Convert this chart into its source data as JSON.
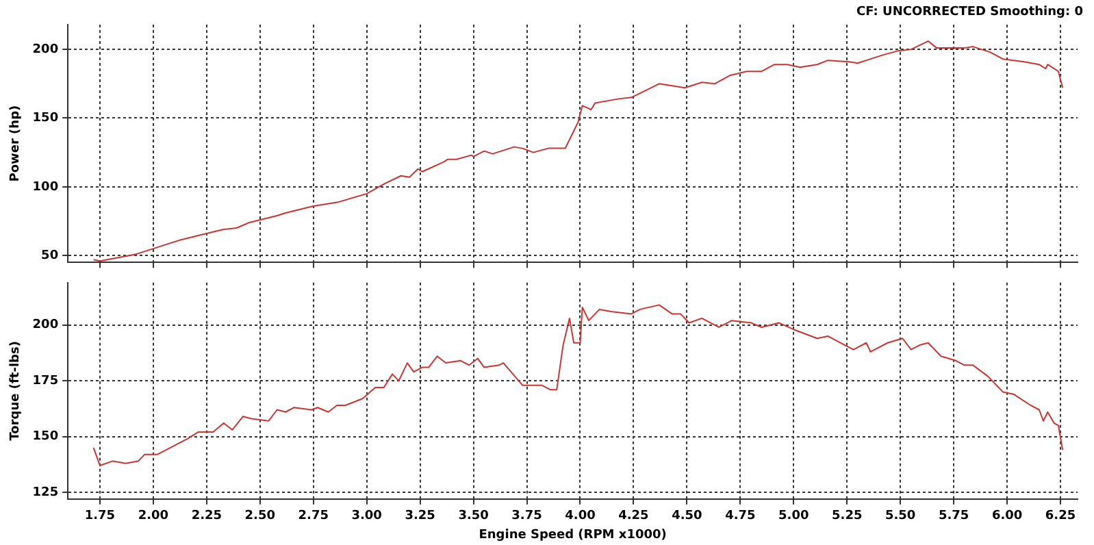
{
  "chart_data": [
    {
      "type": "line",
      "ylabel": "Power (hp)",
      "annotations": [
        "CF: UNCORRECTED  Smoothing: 0"
      ],
      "tick_labels": "y",
      "grid": true,
      "marker": "none",
      "line_style": "solid",
      "xlim": [
        1.6,
        6.33
      ],
      "ylim": [
        45,
        218
      ],
      "xticks": [
        {
          "value": 1.75,
          "label": null
        },
        {
          "value": 2,
          "label": null
        },
        {
          "value": 2.25,
          "label": null
        },
        {
          "value": 2.5,
          "label": null
        },
        {
          "value": 2.75,
          "label": null
        },
        {
          "value": 3,
          "label": null
        },
        {
          "value": 3.25,
          "label": null
        },
        {
          "value": 3.5,
          "label": null
        },
        {
          "value": 3.75,
          "label": null
        },
        {
          "value": 4,
          "label": null
        },
        {
          "value": 4.25,
          "label": null
        },
        {
          "value": 4.5,
          "label": null
        },
        {
          "value": 4.75,
          "label": null
        },
        {
          "value": 5,
          "label": null
        },
        {
          "value": 5.25,
          "label": null
        },
        {
          "value": 5.5,
          "label": null
        },
        {
          "value": 5.75,
          "label": null
        },
        {
          "value": 6,
          "label": null
        },
        {
          "value": 6.25,
          "label": null
        }
      ],
      "yticks": [
        50,
        100,
        150,
        200
      ],
      "series": [
        {
          "color": "#cc3333",
          "x": [
            1.72,
            1.75,
            1.92,
            2.0,
            2.12,
            2.25,
            2.33,
            2.39,
            2.45,
            2.58,
            2.62,
            2.75,
            2.87,
            3.0,
            3.08,
            3.16,
            3.2,
            3.24,
            3.26,
            3.36,
            3.38,
            3.42,
            3.49,
            3.5,
            3.55,
            3.59,
            3.69,
            3.73,
            3.78,
            3.85,
            3.93,
            3.99,
            4.01,
            4.04,
            4.05,
            4.07,
            4.18,
            4.24,
            4.37,
            4.45,
            4.49,
            4.57,
            4.63,
            4.7,
            4.78,
            4.85,
            4.91,
            4.97,
            5.03,
            5.11,
            5.16,
            5.26,
            5.3,
            5.36,
            5.42,
            5.49,
            5.55,
            5.59,
            5.63,
            5.67,
            5.8,
            5.84,
            5.92,
            5.98,
            6.08,
            6.15,
            6.18,
            6.19,
            6.24,
            6.26
          ],
          "values": [
            47,
            46,
            51,
            55,
            61,
            66,
            69,
            70,
            74,
            79,
            81,
            86,
            89,
            95,
            102,
            108,
            107,
            113,
            111,
            118,
            120,
            120,
            123,
            122,
            126,
            124,
            129,
            128,
            125,
            128,
            128,
            147,
            159,
            157,
            156,
            161,
            164,
            165,
            175,
            173,
            172,
            176,
            175,
            181,
            184,
            184,
            189,
            189,
            187,
            189,
            192,
            191,
            190,
            193,
            196,
            199,
            200,
            203,
            206,
            201,
            201,
            202,
            198,
            193,
            191,
            189,
            186,
            189,
            184,
            172
          ]
        }
      ]
    },
    {
      "type": "line",
      "ylabel": "Torque (ft-lbs)",
      "xlabel": "Engine Speed (RPM x1000)",
      "grid": true,
      "marker": "none",
      "line_style": "solid",
      "xlim": [
        1.6,
        6.33
      ],
      "ylim": [
        122,
        219
      ],
      "xticks": [
        {
          "value": 1.75,
          "label": "1.75"
        },
        {
          "value": 2,
          "label": "2.00"
        },
        {
          "value": 2.25,
          "label": "2.25"
        },
        {
          "value": 2.5,
          "label": "2.50"
        },
        {
          "value": 2.75,
          "label": "2.75"
        },
        {
          "value": 3,
          "label": "3.00"
        },
        {
          "value": 3.25,
          "label": "3.25"
        },
        {
          "value": 3.5,
          "label": "3.50"
        },
        {
          "value": 3.75,
          "label": "3.75"
        },
        {
          "value": 4,
          "label": "4.00"
        },
        {
          "value": 4.25,
          "label": "4.25"
        },
        {
          "value": 4.5,
          "label": "4.50"
        },
        {
          "value": 4.75,
          "label": "4.75"
        },
        {
          "value": 5,
          "label": "5.00"
        },
        {
          "value": 5.25,
          "label": "5.25"
        },
        {
          "value": 5.5,
          "label": "5.50"
        },
        {
          "value": 5.75,
          "label": "5.75"
        },
        {
          "value": 6,
          "label": "6.00"
        },
        {
          "value": 6.25,
          "label": "6.25"
        }
      ],
      "yticks": [
        125,
        150,
        175,
        200
      ],
      "series": [
        {
          "color": "#cc3333",
          "x": [
            1.72,
            1.75,
            1.81,
            1.87,
            1.93,
            1.96,
            2.02,
            2.08,
            2.16,
            2.21,
            2.28,
            2.33,
            2.37,
            2.42,
            2.46,
            2.54,
            2.58,
            2.62,
            2.66,
            2.74,
            2.77,
            2.82,
            2.86,
            2.9,
            2.98,
            3.04,
            3.08,
            3.12,
            3.15,
            3.19,
            3.22,
            3.26,
            3.29,
            3.33,
            3.37,
            3.44,
            3.48,
            3.52,
            3.55,
            3.62,
            3.64,
            3.73,
            3.78,
            3.82,
            3.86,
            3.89,
            3.92,
            3.95,
            3.97,
            4.0,
            4.01,
            4.04,
            4.09,
            4.15,
            4.24,
            4.28,
            4.37,
            4.43,
            4.47,
            4.51,
            4.57,
            4.65,
            4.71,
            4.8,
            4.85,
            4.93,
            5.0,
            5.11,
            5.16,
            5.24,
            5.28,
            5.34,
            5.36,
            5.44,
            5.51,
            5.55,
            5.59,
            5.63,
            5.69,
            5.76,
            5.8,
            5.84,
            5.91,
            5.98,
            6.03,
            6.11,
            6.15,
            6.17,
            6.19,
            6.22,
            6.24,
            6.26
          ],
          "values": [
            145,
            137,
            139,
            138,
            139,
            142,
            142,
            145,
            149,
            152,
            152,
            156,
            153,
            159,
            158,
            157,
            162,
            161,
            163,
            162,
            163,
            161,
            164,
            164,
            167,
            172,
            172,
            178,
            175,
            183,
            179,
            181,
            181,
            186,
            183,
            184,
            182,
            185,
            181,
            182,
            183,
            173,
            173,
            173,
            171,
            171,
            191,
            203,
            192,
            192,
            208,
            202,
            207,
            206,
            205,
            207,
            209,
            205,
            205,
            201,
            203,
            199,
            202,
            201,
            199,
            201,
            198,
            194,
            195,
            191,
            189,
            192,
            188,
            192,
            194,
            189,
            191,
            192,
            186,
            184,
            182,
            182,
            177,
            170,
            169,
            164,
            162,
            157,
            161,
            156,
            155,
            144
          ]
        }
      ]
    }
  ]
}
